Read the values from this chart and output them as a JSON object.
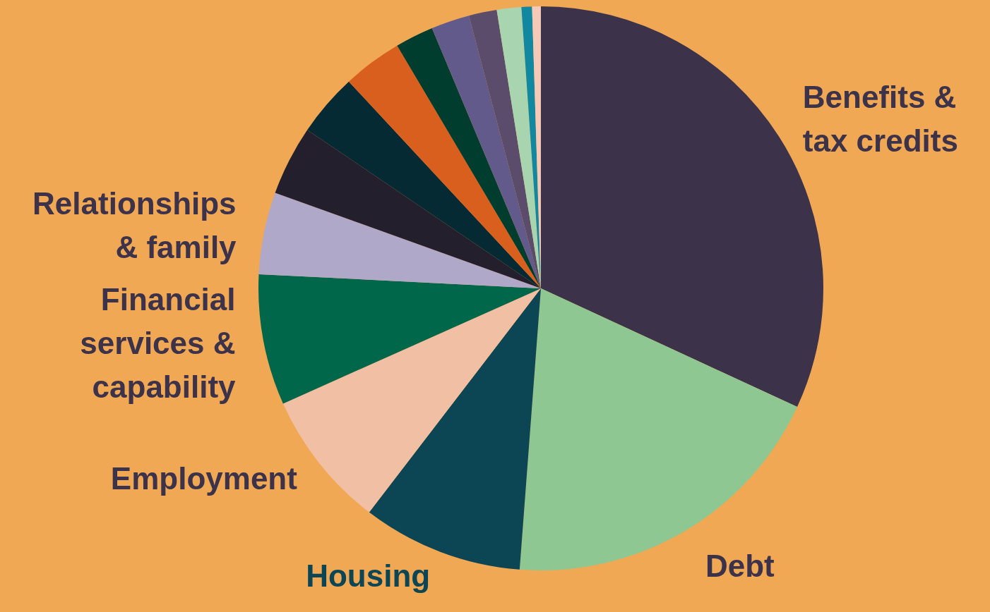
{
  "chart_data": {
    "type": "pie",
    "categories": [
      "Benefits & tax credits",
      "Debt",
      "Housing",
      "Employment",
      "Financial services & capability",
      "Relationships & family",
      null,
      null,
      null,
      null,
      null,
      null,
      null,
      null,
      null
    ],
    "values": [
      31.9,
      19.3,
      9.2,
      7.9,
      7.5,
      4.7,
      4.0,
      3.6,
      3.4,
      2.2,
      2.2,
      1.6,
      1.4,
      0.6,
      0.5
    ],
    "colors": [
      "#3c3249",
      "#8fc792",
      "#0c4654",
      "#f1bfa3",
      "#00674b",
      "#b0a8c8",
      "#241f2c",
      "#052a34",
      "#d95f1e",
      "#003d2e",
      "#625a8a",
      "#5a4c6a",
      "#a8d5b0",
      "#1188a0",
      "#f5c9b8"
    ],
    "legend": false
  }
}
